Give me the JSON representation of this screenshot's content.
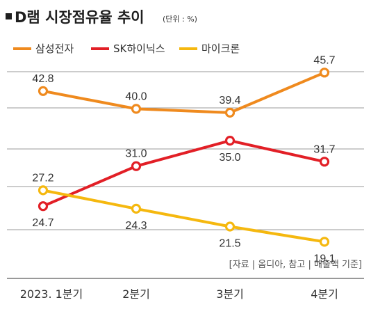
{
  "title": "D램 시장점유율 추이",
  "unit": "(단위 : %)",
  "source": "[자료 | 옴디아, 참고 | 매출액 기준]",
  "chart_data": {
    "type": "line",
    "title": "D램 시장점유율 추이",
    "unit": "(단위 : %)",
    "categories": [
      "2023. 1분기",
      "2분기",
      "3분기",
      "4분기"
    ],
    "series": [
      {
        "name": "삼성전자",
        "color": "#ef8a1e",
        "values": [
          42.8,
          40.0,
          39.4,
          45.7
        ]
      },
      {
        "name": "SK하이닉스",
        "color": "#e21f26",
        "values": [
          24.7,
          31.0,
          35.0,
          31.7
        ]
      },
      {
        "name": "마이크론",
        "color": "#f5b80f",
        "values": [
          27.2,
          24.3,
          21.5,
          19.1
        ]
      }
    ],
    "legend_position": "top-left",
    "grid": "horizontal"
  }
}
